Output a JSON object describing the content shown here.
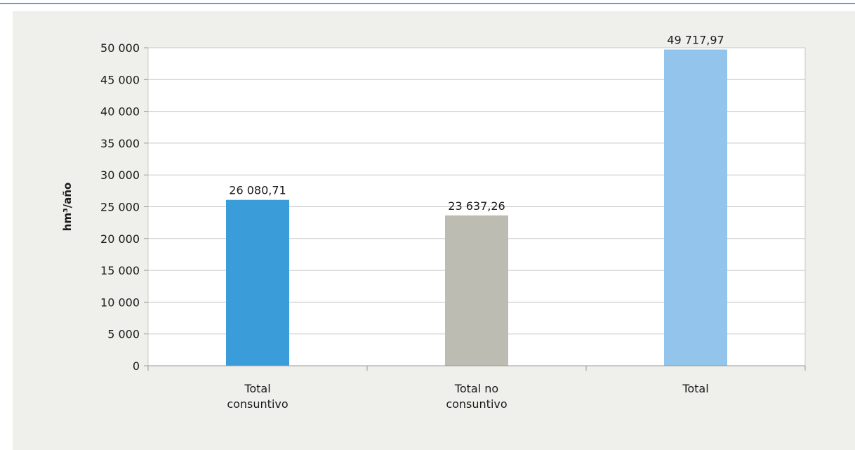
{
  "chart_data": {
    "type": "bar",
    "categories": [
      "Total consuntivo",
      "Total no consuntivo",
      "Total"
    ],
    "category_lines": [
      [
        "Total",
        "consuntivo"
      ],
      [
        "Total no",
        "consuntivo"
      ],
      [
        "Total"
      ]
    ],
    "values": [
      26080.71,
      23637.26,
      49717.97
    ],
    "data_labels": [
      "26 080,71",
      "23 637,26",
      "49 717,97"
    ],
    "title": "",
    "xlabel": "",
    "ylabel": "hm³/año",
    "ylim": [
      0,
      50000
    ],
    "ytick_step": 5000,
    "ytick_labels": [
      "0",
      "5 000",
      "10 000",
      "15 000",
      "20 000",
      "25 000",
      "30 000",
      "35 000",
      "40 000",
      "45 000",
      "50 000"
    ],
    "grid": true,
    "legend": "none",
    "colors": [
      "#3a9cd9",
      "#bcbcb3",
      "#92c4ec"
    ]
  },
  "colors": {
    "accent_rule": "#4fa8dc",
    "panel_background": "#efefeb",
    "plot_background": "#ffffff",
    "gridline": "#c8c8c8"
  }
}
